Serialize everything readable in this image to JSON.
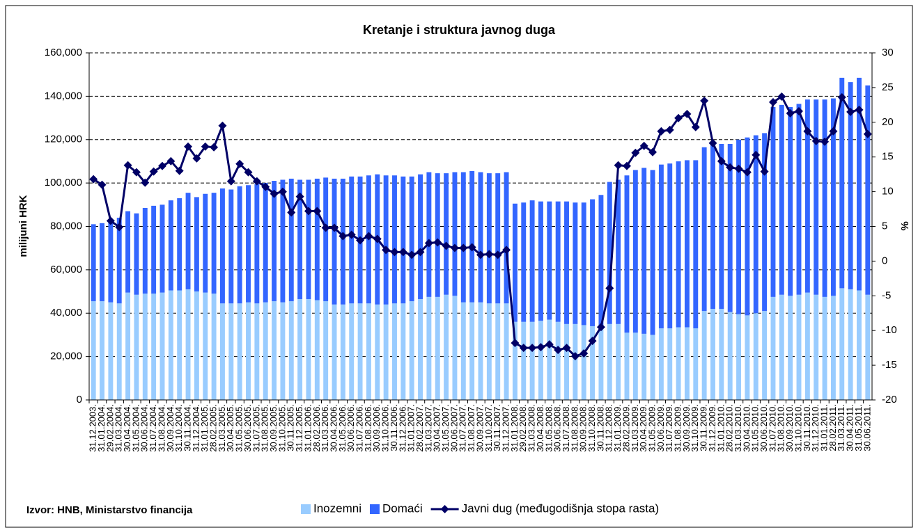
{
  "chart_data": {
    "type": "bar",
    "title": "Kretanje i struktura javnog duga",
    "y_label": "milijuni HRK",
    "y2_label": "%",
    "source": "Izvor: HNB, Ministarstvo financija",
    "stacked": true,
    "grid": true,
    "legend": "bottom",
    "categories": [
      "31.12.2003.",
      "31.01.2004.",
      "29.02.2004.",
      "31.03.2004.",
      "30.04.2004.",
      "31.05.2004.",
      "30.06.2004.",
      "31.07.2004.",
      "31.08.2004.",
      "30.09.2004.",
      "31.10.2004.",
      "30.11.2004.",
      "31.12.2004.",
      "31.01.2005.",
      "28.02.2005.",
      "31.03.2005.",
      "30.04.2005.",
      "31.05.2005.",
      "30.06.2005.",
      "31.07.2005.",
      "31.08.2005.",
      "30.09.2005.",
      "31.10.2005.",
      "30.11.2005.",
      "31.12.2005.",
      "31.01.2006.",
      "28.02.2006.",
      "31.03.2006.",
      "30.04.2006.",
      "31.05.2006.",
      "30.06.2006.",
      "31.07.2006.",
      "31.08.2006.",
      "30.09.2006.",
      "31.10.2006.",
      "30.11.2006.",
      "31.12.2006.",
      "31.01.2007.",
      "28.02.2007.",
      "31.03.2007.",
      "30.04.2007.",
      "31.05.2007.",
      "30.06.2007.",
      "31.07.2007.",
      "31.08.2007.",
      "30.09.2007.",
      "31.10.2007.",
      "30.11.2007.",
      "31.12.2007.",
      "31.01.2008.",
      "29.02.2008.",
      "31.03.2008.",
      "30.04.2008.",
      "31.05.2008.",
      "30.06.2008.",
      "31.07.2008.",
      "31.08.2008.",
      "30.09.2008.",
      "31.10.2008.",
      "30.11.2008.",
      "31.12.2008.",
      "31.01.2009.",
      "28.02.2009.",
      "31.03.2009.",
      "30.04.2009.",
      "31.05.2009.",
      "30.06.2009.",
      "31.07.2009.",
      "31.08.2009.",
      "30.09.2009.",
      "31.10.2009.",
      "30.11.2009.",
      "31.12.2009.",
      "31.01.2010.",
      "28.02.2010.",
      "31.03.2010.",
      "30.04.2010.",
      "31.05.2010.",
      "30.06.2010.",
      "31.07.2010.",
      "31.08.2010.",
      "30.09.2010.",
      "31.10.2010.",
      "30.11.2010.",
      "31.12.2010.",
      "31.01.2011.",
      "28.02.2011.",
      "31.03.2011.",
      "30.04.2011.",
      "31.05.2011.",
      "30.06.2011."
    ],
    "series": [
      {
        "name": "Inozemni",
        "color": "#99ccff",
        "values": [
          45500,
          45500,
          45000,
          44500,
          49500,
          48500,
          49000,
          49000,
          49500,
          50500,
          50500,
          51000,
          50000,
          49500,
          49000,
          44500,
          44500,
          44500,
          45000,
          44500,
          45000,
          45500,
          45000,
          45500,
          46500,
          46500,
          46000,
          45500,
          44000,
          44000,
          44500,
          44500,
          44500,
          44000,
          44000,
          44500,
          44500,
          45500,
          46500,
          47500,
          47500,
          48500,
          48000,
          45000,
          45000,
          45000,
          44500,
          44500,
          44500,
          36000,
          36000,
          36000,
          36500,
          37000,
          36000,
          35000,
          35000,
          34500,
          34000,
          34500,
          35000,
          35000,
          31000,
          31000,
          30500,
          30000,
          33000,
          33000,
          33500,
          33500,
          33000,
          41000,
          42000,
          42000,
          40500,
          39500,
          39000,
          40000,
          41000,
          47500,
          48500,
          48000,
          48500,
          49500,
          48500,
          47500,
          48000,
          51500,
          51000,
          50500,
          48500
        ]
      },
      {
        "name": "Domaći",
        "color": "#3366ff",
        "values": [
          35500,
          36000,
          37500,
          39500,
          37500,
          37500,
          39500,
          40500,
          40500,
          41500,
          42500,
          44500,
          43500,
          45500,
          46500,
          53000,
          52500,
          54000,
          54000,
          55000,
          55000,
          55500,
          56500,
          56500,
          55000,
          55000,
          56000,
          57000,
          58000,
          58000,
          58500,
          58500,
          59000,
          60000,
          59500,
          59000,
          58500,
          57500,
          57500,
          57500,
          57000,
          56000,
          57000,
          60000,
          60500,
          60000,
          60000,
          60000,
          60500,
          54500,
          55000,
          56000,
          55000,
          54500,
          55500,
          56500,
          56000,
          56500,
          58500,
          60000,
          65500,
          66500,
          72500,
          75000,
          76500,
          76000,
          75500,
          76000,
          76500,
          77000,
          77500,
          75500,
          76000,
          76000,
          77500,
          80500,
          82000,
          82000,
          82000,
          87500,
          87500,
          87000,
          88000,
          89000,
          90000,
          91000,
          91000,
          97000,
          95500,
          98000,
          96500
        ]
      },
      {
        "name": "Javni dug (međugodišnja stopa rasta)",
        "color": "#000066",
        "axis": "y2",
        "type": "line",
        "values": [
          11.8,
          11,
          5.8,
          4.9,
          13.8,
          12.8,
          11.3,
          12.9,
          13.7,
          14.4,
          13,
          16.5,
          14.8,
          16.5,
          16.4,
          19.5,
          11.5,
          14,
          12.8,
          11.5,
          10.7,
          9.7,
          10,
          7,
          9.3,
          7.2,
          7.2,
          4.8,
          4.8,
          3.6,
          3.8,
          3,
          3.6,
          3.2,
          1.6,
          1.3,
          1.3,
          0.9,
          1.3,
          2.6,
          2.7,
          2.2,
          1.9,
          1.9,
          2,
          0.9,
          1,
          0.9,
          1.6,
          -11.8,
          -12.5,
          -12.5,
          -12.4,
          -12,
          -12.8,
          -12.5,
          -13.7,
          -13.3,
          -11.5,
          -9.5,
          -3.9,
          13.8,
          13.7,
          15.6,
          16.6,
          15.7,
          18.7,
          18.9,
          20.6,
          21.2,
          19.3,
          23.1,
          17,
          14.4,
          13.5,
          13.3,
          12.8,
          15.3,
          12.9,
          22.9,
          23.7,
          21.3,
          21.6,
          18.7,
          17.3,
          17.2,
          18.7,
          23.6,
          21.5,
          21.8,
          18.3
        ]
      }
    ],
    "ylim": [
      0,
      160000
    ],
    "yticks": [
      0,
      {
        "value": 20000,
        "label": "20,000"
      },
      {
        "value": 40000,
        "label": "40,000"
      },
      {
        "value": 60000,
        "label": "60,000"
      },
      {
        "value": 80000,
        "label": "80,000"
      },
      {
        "value": 100000,
        "label": "100,000"
      },
      {
        "value": 120000,
        "label": "120,000"
      },
      {
        "value": 140000,
        "label": "140,000"
      },
      {
        "value": 160000,
        "label": "160,000"
      }
    ],
    "y2lim": [
      -20,
      30
    ],
    "y2ticks": [
      -20,
      -15,
      -10,
      -5,
      0,
      5,
      10,
      15,
      20,
      25,
      30
    ]
  }
}
